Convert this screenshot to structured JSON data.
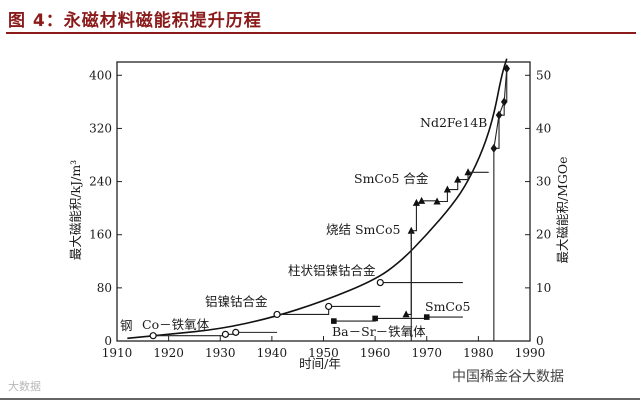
{
  "header": {
    "title": "图 4：永磁材料磁能积提升历程"
  },
  "watermarks": {
    "left": "大数据",
    "right": "中国稀金谷大数据"
  },
  "chart_data": {
    "type": "line",
    "xlabel": "时间/年",
    "ylabel_left": "最大磁能积/kJ/m³",
    "ylabel_right": "最大磁能积/MGOe",
    "xlim": [
      1910,
      1990
    ],
    "ylim_left": [
      0,
      420
    ],
    "ylim_right": [
      0,
      52.5
    ],
    "x_ticks": [
      1910,
      1920,
      1930,
      1940,
      1950,
      1960,
      1970,
      1980,
      1990
    ],
    "y_ticks_left": [
      0,
      80,
      160,
      240,
      320,
      400
    ],
    "y_ticks_right": [
      0,
      10,
      20,
      30,
      40,
      50
    ],
    "grid": false,
    "series": [
      {
        "name": "钢",
        "marker": "circle-open",
        "points": [
          [
            1917,
            8
          ],
          [
            1931,
            10
          ]
        ]
      },
      {
        "name": "Co－铁氧体",
        "marker": "circle-open",
        "points": [
          [
            1933,
            13
          ]
        ]
      },
      {
        "name": "铝镍钴合金",
        "marker": "circle-open",
        "points": [
          [
            1941,
            40
          ],
          [
            1951,
            52
          ]
        ]
      },
      {
        "name": "柱状铝镍钴合金",
        "marker": "circle-open",
        "points": [
          [
            1961,
            88
          ]
        ]
      },
      {
        "name": "Ba－Sr－铁氧体",
        "marker": "square",
        "points": [
          [
            1952,
            30
          ],
          [
            1960,
            34
          ],
          [
            1970,
            36
          ]
        ]
      },
      {
        "name": "SmCo5",
        "marker": "triangle",
        "points": [
          [
            1966,
            40
          ],
          [
            1967,
            166
          ],
          [
            1968,
            208
          ],
          [
            1969,
            211
          ]
        ]
      },
      {
        "name": "SmCo5 合金",
        "marker": "triangle",
        "points": [
          [
            1972,
            210
          ],
          [
            1974,
            228
          ],
          [
            1976,
            243
          ],
          [
            1978,
            254
          ]
        ]
      },
      {
        "name": "Nd2Fe14B",
        "marker": "diamond",
        "points": [
          [
            1983,
            290
          ],
          [
            1984,
            340
          ],
          [
            1985,
            360
          ],
          [
            1985.5,
            410
          ]
        ]
      }
    ],
    "trend_curve": [
      [
        1912,
        4
      ],
      [
        1920,
        10
      ],
      [
        1930,
        18
      ],
      [
        1940,
        35
      ],
      [
        1950,
        60
      ],
      [
        1960,
        92
      ],
      [
        1965,
        120
      ],
      [
        1970,
        160
      ],
      [
        1975,
        205
      ],
      [
        1978,
        240
      ],
      [
        1981,
        290
      ],
      [
        1983,
        340
      ],
      [
        1984.5,
        400
      ],
      [
        1985.5,
        460
      ]
    ],
    "annotations": [
      "钢",
      "Co－铁氧体",
      "铝镍钴合金",
      "柱状铝镍钴合金",
      "Ba－Sr－铁氧体",
      "SmCo5",
      "烧结 SmCo5",
      "SmCo5 合金",
      "Nd2Fe14B"
    ]
  }
}
